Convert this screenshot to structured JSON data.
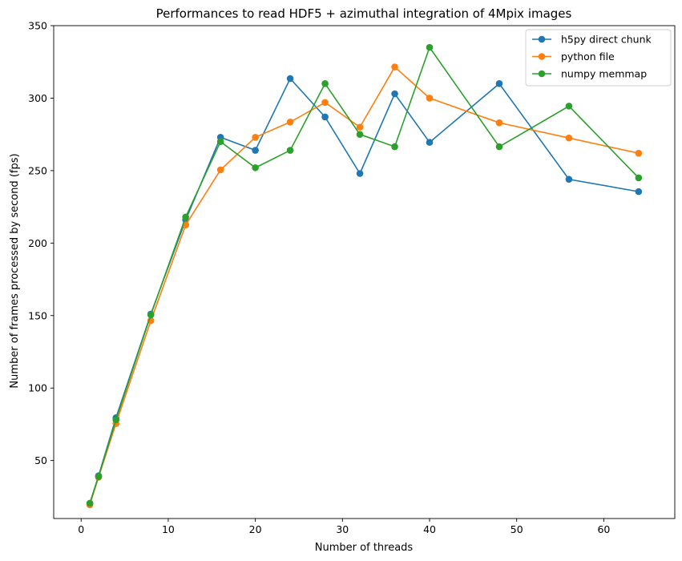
{
  "chart_data": {
    "type": "line",
    "title": "Performances to read HDF5 + azimuthal integration of 4Mpix images",
    "xlabel": "Number of threads",
    "ylabel": "Number of frames processed by second (fps)",
    "xlim": [
      -3.15,
      68.15
    ],
    "ylim": [
      10,
      350
    ],
    "xticks": [
      0,
      10,
      20,
      30,
      40,
      50,
      60
    ],
    "yticks": [
      50,
      100,
      150,
      200,
      250,
      300,
      350
    ],
    "grid": false,
    "legend_position": "top-right",
    "x": [
      1,
      2,
      4,
      8,
      12,
      16,
      20,
      24,
      28,
      32,
      36,
      40,
      48,
      56,
      64
    ],
    "series": [
      {
        "name": "h5py direct chunk",
        "color": "#1f77b4",
        "values": [
          20.5,
          39.5,
          79.5,
          151,
          216,
          273,
          264,
          313.5,
          287,
          248,
          303,
          269.5,
          310,
          244,
          235.5
        ]
      },
      {
        "name": "python file",
        "color": "#ff7f0e",
        "values": [
          19.5,
          38.5,
          75.5,
          146.5,
          212.5,
          250.5,
          273,
          283.5,
          297,
          280,
          321.5,
          300,
          283,
          272.5,
          262
        ]
      },
      {
        "name": "numpy memmap",
        "color": "#2ca02c",
        "values": [
          20.5,
          39,
          78,
          150.5,
          218,
          270,
          252,
          264,
          310,
          275,
          266.5,
          335,
          266.5,
          294.5,
          245
        ]
      }
    ]
  }
}
